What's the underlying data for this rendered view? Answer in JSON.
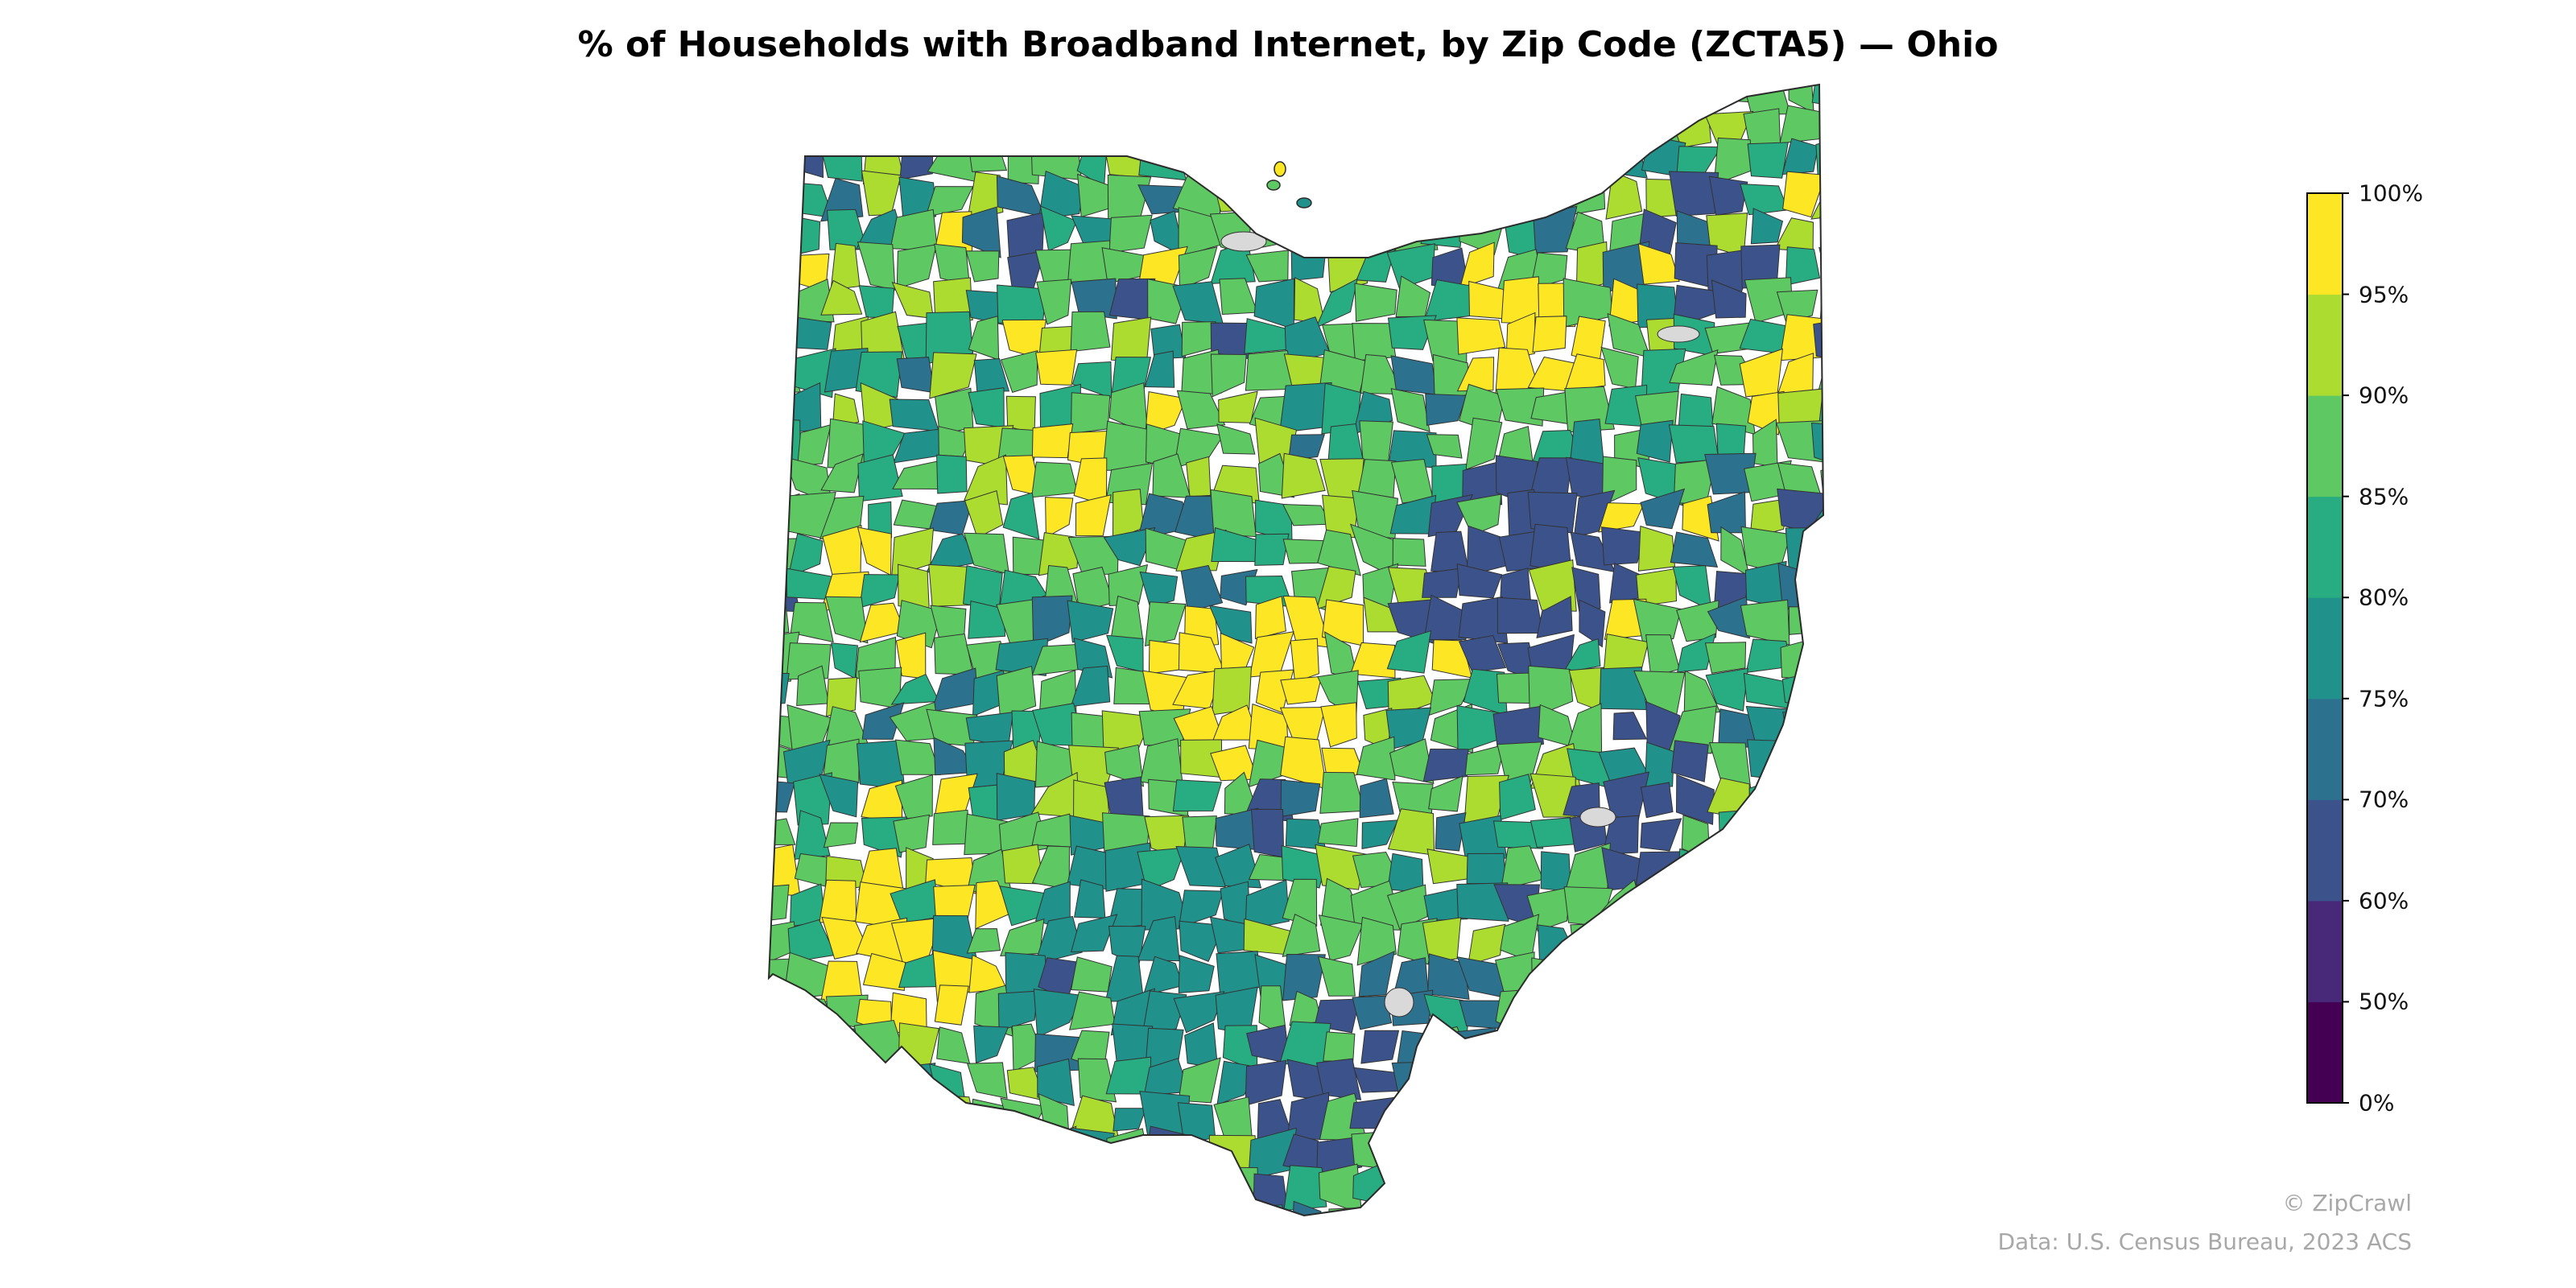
{
  "title": "% of Households with Broadband Internet, by Zip Code (ZCTA5) — Ohio",
  "map": {
    "region": "Ohio",
    "unit": "ZCTA5",
    "no_data_color": "#d9d9d9",
    "boundary_color": "#2b2b2b"
  },
  "legend": {
    "ticks": [
      "0%",
      "50%",
      "60%",
      "70%",
      "75%",
      "80%",
      "85%",
      "90%",
      "95%",
      "100%"
    ],
    "bins": [
      {
        "range": "0–50%",
        "color": "#440154"
      },
      {
        "range": "50–60%",
        "color": "#482979"
      },
      {
        "range": "60–70%",
        "color": "#3b528b"
      },
      {
        "range": "70–75%",
        "color": "#2c718e"
      },
      {
        "range": "75–80%",
        "color": "#21918c"
      },
      {
        "range": "80–85%",
        "color": "#27ad81"
      },
      {
        "range": "85–90%",
        "color": "#5ec962"
      },
      {
        "range": "90–95%",
        "color": "#addc30"
      },
      {
        "range": "95–100%",
        "color": "#fde725"
      }
    ]
  },
  "credits": {
    "copyright": "© ZipCrawl",
    "source": "Data: U.S. Census Bureau, 2023 ACS"
  }
}
